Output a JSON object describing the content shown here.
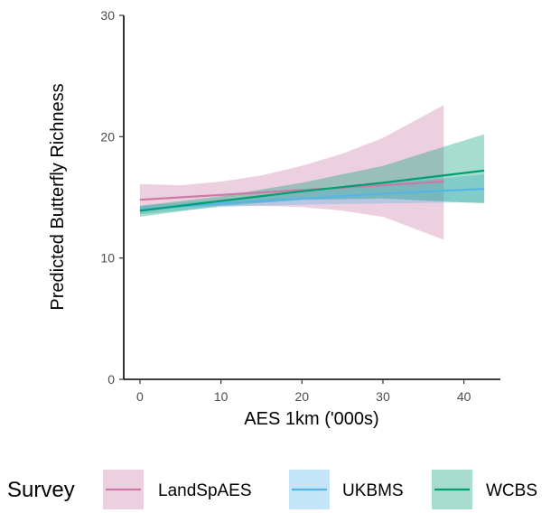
{
  "chart_data": {
    "type": "line",
    "title": "",
    "xlabel": "AES 1km ('000s)",
    "ylabel": "Predicted Butterfly Richness",
    "xlim": [
      -2,
      44.5
    ],
    "ylim": [
      0,
      30
    ],
    "x_ticks": [
      0,
      10,
      20,
      30,
      40
    ],
    "y_ticks": [
      0,
      10,
      20,
      30
    ],
    "x_tick_labels": [
      "0",
      "10",
      "20",
      "30",
      "40"
    ],
    "y_tick_labels": [
      "0",
      "10",
      "20",
      "30"
    ],
    "grid": false,
    "legend": {
      "title": "Survey",
      "position": "bottom"
    },
    "series": [
      {
        "name": "LandSpAES",
        "color": "#cc79a7",
        "x": [
          0,
          5,
          10,
          15,
          20,
          25,
          30,
          37.5
        ],
        "y": [
          14.8,
          15.0,
          15.2,
          15.4,
          15.6,
          15.8,
          16.0,
          16.3
        ],
        "lower": [
          13.8,
          14.2,
          14.3,
          14.3,
          14.2,
          13.9,
          13.4,
          11.5
        ],
        "upper": [
          16.1,
          16.0,
          16.3,
          16.8,
          17.6,
          18.6,
          19.9,
          22.6
        ]
      },
      {
        "name": "UKBMS",
        "color": "#56b4e9",
        "x": [
          0,
          10,
          20,
          30,
          42.5
        ],
        "y": [
          14.0,
          14.5,
          14.9,
          15.3,
          15.7
        ],
        "lower": [
          13.6,
          14.2,
          14.4,
          14.5,
          14.6
        ],
        "upper": [
          14.3,
          14.8,
          15.4,
          16.1,
          16.9
        ]
      },
      {
        "name": "WCBS",
        "color": "#009e73",
        "x": [
          0,
          10,
          20,
          30,
          42.5
        ],
        "y": [
          13.9,
          14.7,
          15.5,
          16.2,
          17.2
        ],
        "lower": [
          13.4,
          14.3,
          14.8,
          14.9,
          14.5
        ],
        "upper": [
          14.3,
          15.1,
          16.2,
          17.6,
          20.2
        ]
      }
    ]
  }
}
